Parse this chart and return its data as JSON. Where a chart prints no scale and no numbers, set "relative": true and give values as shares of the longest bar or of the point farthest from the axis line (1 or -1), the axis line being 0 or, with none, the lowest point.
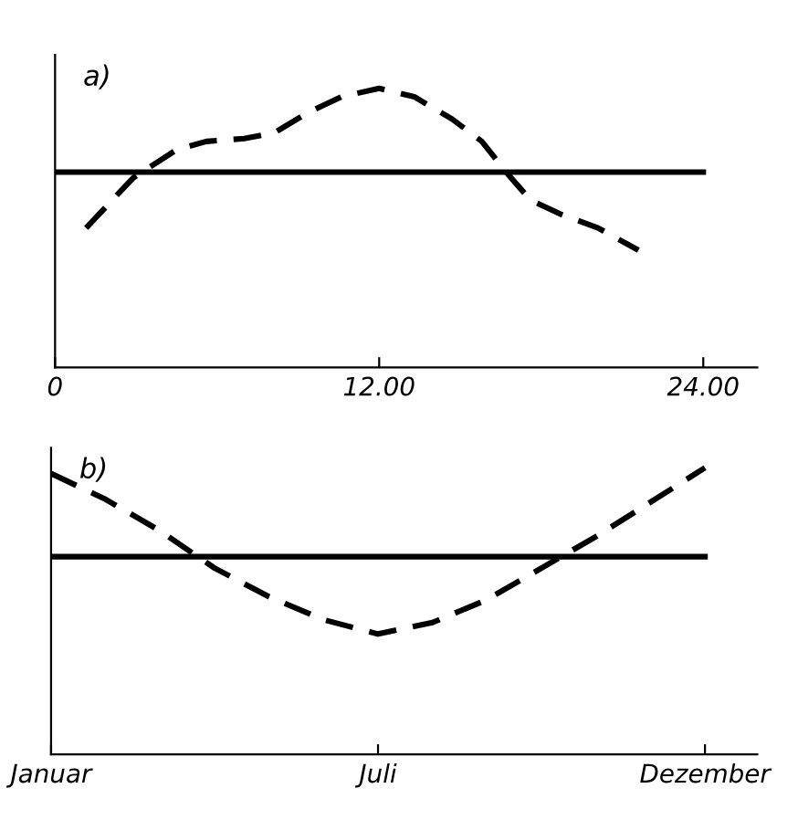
{
  "chart_data": [
    {
      "type": "line",
      "title": "a)",
      "relative": true,
      "xlim": [
        0,
        26
      ],
      "xticks": [
        0,
        {
          "value": 12,
          "label": "12.00"
        },
        {
          "value": 24,
          "label": "24.00"
        }
      ],
      "grid": false,
      "tick_labels": "x",
      "series": [
        {
          "color": "#000000",
          "line_style": "dashed",
          "x": [
            1.15,
            2.9,
            4.5,
            5.6,
            7.0,
            8.1,
            9.3,
            10.6,
            12.0,
            13.3,
            14.7,
            15.8,
            16.7,
            17.6,
            18.7,
            20.1,
            21.6
          ],
          "values": [
            0.5,
            0.68,
            0.78,
            0.81,
            0.82,
            0.84,
            0.91,
            0.97,
            1.0,
            0.97,
            0.89,
            0.81,
            0.7,
            0.6,
            0.55,
            0.5,
            0.42
          ]
        },
        {
          "color": "#000000",
          "line_style": "solid",
          "x": [
            0,
            24
          ],
          "values": [
            0.7,
            0.7
          ]
        }
      ]
    },
    {
      "type": "line",
      "title": "b)",
      "relative": true,
      "categories": [
        "Januar",
        null,
        null,
        null,
        null,
        null,
        "Juli",
        null,
        null,
        null,
        null,
        null,
        "Dezember"
      ],
      "grid": false,
      "tick_labels": "x",
      "series": [
        {
          "color": "#000000",
          "line_style": "dashed",
          "values": [
            0.98,
            0.89,
            0.78,
            0.65,
            0.55,
            0.47,
            0.42,
            0.46,
            0.54,
            0.65,
            0.76,
            0.88,
            1.0
          ]
        },
        {
          "color": "#000000",
          "line_style": "solid",
          "values": [
            0.69,
            0.69,
            0.69,
            0.69,
            0.69,
            0.69,
            0.69,
            0.69,
            0.69,
            0.69,
            0.69,
            0.69,
            0.69
          ]
        }
      ]
    }
  ]
}
